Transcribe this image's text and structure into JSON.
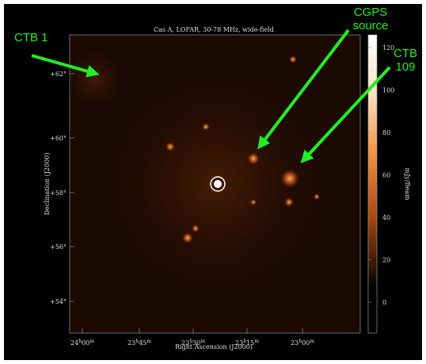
{
  "figure": {
    "title": "Cas A, LOFAR, 30-78 MHz, wide-field",
    "y_label": "Declination (J2000)",
    "x_label": "Right Ascension (J2000)",
    "y_ticks": [
      "+62°",
      "+60°",
      "+58°",
      "+56°",
      "+54°"
    ],
    "x_ticks": [
      [
        "24",
        "h",
        "00",
        "m"
      ],
      [
        "23",
        "h",
        "45",
        "m"
      ],
      [
        "23",
        "h",
        "30",
        "m"
      ],
      [
        "23",
        "h",
        "15",
        "m"
      ],
      [
        "23",
        "h",
        "00",
        "m"
      ]
    ],
    "colorbar": {
      "label": "mJy/Beam",
      "ticks": [
        120,
        100,
        80,
        60,
        40,
        20,
        0
      ]
    }
  },
  "annotations": [
    {
      "lines": [
        "CTB  1"
      ]
    },
    {
      "lines": [
        "CGPS",
        "source"
      ]
    },
    {
      "lines": [
        "CTB",
        "109"
      ]
    }
  ]
}
